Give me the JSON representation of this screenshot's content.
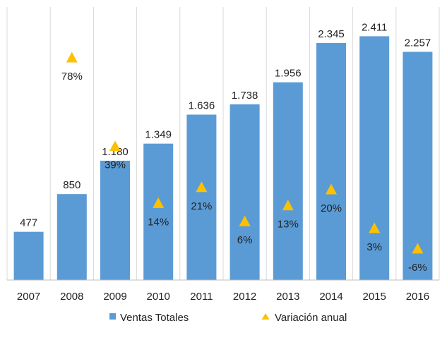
{
  "chart_data": {
    "type": "bar",
    "categories": [
      "2007",
      "2008",
      "2009",
      "2010",
      "2011",
      "2012",
      "2013",
      "2014",
      "2015",
      "2016"
    ],
    "series": [
      {
        "name": "Ventas Totales",
        "type": "bar",
        "color": "#5b9bd5",
        "values": [
          477,
          850,
          1180,
          1349,
          1636,
          1738,
          1956,
          2345,
          2411,
          2257
        ],
        "labels": [
          "477",
          "850",
          "1.180",
          "1.349",
          "1.636",
          "1.738",
          "1.956",
          "2.345",
          "2.411",
          "2.257"
        ]
      },
      {
        "name": "Variación anual",
        "type": "scatter",
        "marker": "triangle",
        "color": "#ffc000",
        "values": [
          null,
          78,
          39,
          14,
          21,
          6,
          13,
          20,
          3,
          -6
        ],
        "labels": [
          "",
          "78%",
          "39%",
          "14%",
          "21%",
          "6%",
          "13%",
          "20%",
          "3%",
          "-6%"
        ]
      }
    ],
    "ylim_bars": [
      0,
      2700
    ],
    "ylim_pct": [
      -20,
      100
    ],
    "grid": "vertical",
    "legend_position": "bottom"
  }
}
